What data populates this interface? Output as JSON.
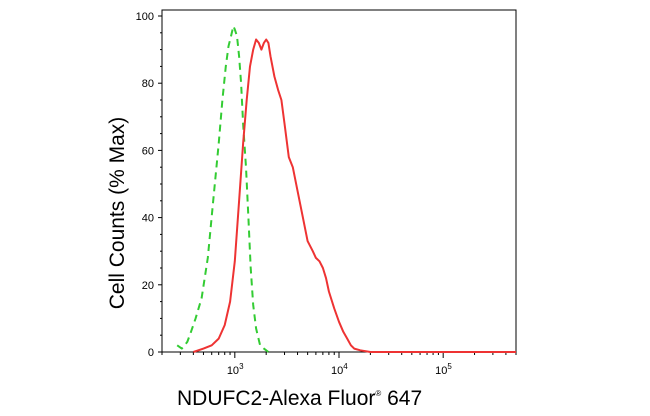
{
  "chart_data": {
    "type": "line",
    "xlabel": "NDUFC2-Alexa Fluor",
    "xlabel_superscript": "®",
    "xlabel_suffix": " 647",
    "ylabel": "Cell Counts (% Max)",
    "x_scale": "log",
    "xlim": [
      200,
      500000
    ],
    "ylim": [
      0,
      100
    ],
    "y_ticks": [
      "0",
      "20",
      "40",
      "60",
      "80",
      "100"
    ],
    "x_ticks": [
      {
        "value": 1000,
        "base": "10",
        "exp": "3"
      },
      {
        "value": 10000,
        "base": "10",
        "exp": "4"
      },
      {
        "value": 100000,
        "base": "10",
        "exp": "5"
      }
    ],
    "grid": false,
    "legend": "none",
    "series": [
      {
        "color": "#33cc33",
        "line_style": "dashed",
        "x": [
          280,
          310,
          350,
          380,
          420,
          480,
          550,
          620,
          700,
          760,
          820,
          870,
          920,
          970,
          1000,
          1050,
          1100,
          1150,
          1200,
          1280,
          1350,
          1420,
          1500,
          1600,
          1750,
          1900,
          2100
        ],
        "y": [
          2,
          1,
          3,
          6,
          10,
          16,
          28,
          45,
          62,
          75,
          85,
          91,
          94,
          97,
          96,
          94,
          88,
          80,
          68,
          55,
          40,
          25,
          14,
          7,
          2,
          1,
          0
        ]
      },
      {
        "color": "#ee3333",
        "line_style": "solid",
        "x": [
          400,
          500,
          600,
          700,
          800,
          900,
          1000,
          1100,
          1200,
          1300,
          1400,
          1500,
          1600,
          1700,
          1800,
          1900,
          2000,
          2100,
          2200,
          2400,
          2600,
          2800,
          3000,
          3300,
          3600,
          4000,
          4500,
          5000,
          5600,
          6000,
          6500,
          7000,
          7500,
          8000,
          9000,
          10000,
          11000,
          12000,
          13000,
          14000,
          16000,
          20000,
          30000,
          60000,
          100000,
          200000,
          500000
        ],
        "y": [
          0,
          1,
          2,
          4,
          8,
          15,
          27,
          45,
          62,
          75,
          85,
          90,
          93,
          92,
          90,
          92,
          93,
          92,
          88,
          82,
          78,
          75,
          68,
          58,
          55,
          48,
          40,
          33,
          30,
          28,
          27,
          25,
          22,
          18,
          13,
          9,
          6,
          4,
          2,
          1,
          0.5,
          0,
          0,
          0,
          0,
          0,
          0
        ]
      }
    ]
  }
}
